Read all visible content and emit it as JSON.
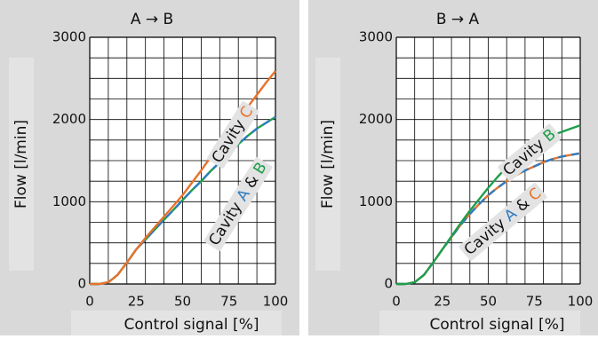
{
  "chart_data": [
    {
      "type": "line",
      "title": "A → B",
      "xlabel": "Control signal [%]",
      "ylabel": "Flow [l/min]",
      "xlim": [
        0,
        100
      ],
      "ylim": [
        0,
        3000
      ],
      "xticks": [
        "0",
        "25",
        "50",
        "75",
        "100"
      ],
      "yticks": [
        "0",
        "1000",
        "2000",
        "3000"
      ],
      "grid": true,
      "series": [
        {
          "label_parts": [
            "Cavity ",
            "C"
          ],
          "color": "#e8722a",
          "dashed": false,
          "x": [
            0,
            5,
            10,
            15,
            20,
            25,
            30,
            35,
            40,
            45,
            50,
            55,
            60,
            65,
            70,
            75,
            80,
            85,
            90,
            95,
            100
          ],
          "y": [
            0,
            0,
            20,
            110,
            260,
            420,
            560,
            690,
            820,
            950,
            1080,
            1230,
            1380,
            1540,
            1690,
            1850,
            2000,
            2150,
            2300,
            2450,
            2590
          ]
        },
        {
          "label_parts": [
            "Cavity ",
            "A",
            " & ",
            "B"
          ],
          "color": "#2f7bbf",
          "color2": "#1e9e4a",
          "dashed": true,
          "x": [
            0,
            5,
            10,
            15,
            20,
            25,
            30,
            35,
            40,
            45,
            50,
            55,
            60,
            65,
            70,
            75,
            80,
            85,
            90,
            95,
            100
          ],
          "y": [
            0,
            0,
            20,
            110,
            260,
            420,
            540,
            660,
            780,
            900,
            1020,
            1140,
            1250,
            1370,
            1480,
            1590,
            1700,
            1800,
            1890,
            1960,
            2030
          ]
        }
      ]
    },
    {
      "type": "line",
      "title": "B → A",
      "xlabel": "Control signal [%]",
      "ylabel": "Flow [l/min]",
      "xlim": [
        0,
        100
      ],
      "ylim": [
        0,
        3000
      ],
      "xticks": [
        "0",
        "25",
        "50",
        "75",
        "100"
      ],
      "yticks": [
        "0",
        "1000",
        "2000",
        "3000"
      ],
      "grid": true,
      "series": [
        {
          "label_parts": [
            "Cavity ",
            "B"
          ],
          "color": "#1e9e4a",
          "dashed": false,
          "x": [
            0,
            5,
            10,
            15,
            20,
            25,
            30,
            35,
            40,
            45,
            50,
            55,
            60,
            65,
            70,
            75,
            80,
            85,
            90,
            95,
            100
          ],
          "y": [
            0,
            0,
            20,
            110,
            260,
            420,
            580,
            740,
            890,
            1030,
            1170,
            1300,
            1420,
            1530,
            1620,
            1700,
            1760,
            1810,
            1850,
            1890,
            1930
          ]
        },
        {
          "label_parts": [
            "Cavity ",
            "A",
            " & ",
            "C"
          ],
          "color": "#2f7bbf",
          "color2": "#e8722a",
          "dashed": true,
          "x": [
            0,
            5,
            10,
            15,
            20,
            25,
            30,
            35,
            40,
            45,
            50,
            55,
            60,
            65,
            70,
            75,
            80,
            85,
            90,
            95,
            100
          ],
          "y": [
            0,
            0,
            20,
            110,
            260,
            420,
            570,
            720,
            850,
            970,
            1080,
            1170,
            1250,
            1320,
            1380,
            1430,
            1480,
            1520,
            1550,
            1570,
            1590
          ]
        }
      ]
    }
  ],
  "colors": {
    "panel_bg": "#d9d9d9",
    "plot_bg": "#ffffff",
    "grid": "#000000",
    "label_box": "#e3e3e3",
    "text": "#111111"
  }
}
